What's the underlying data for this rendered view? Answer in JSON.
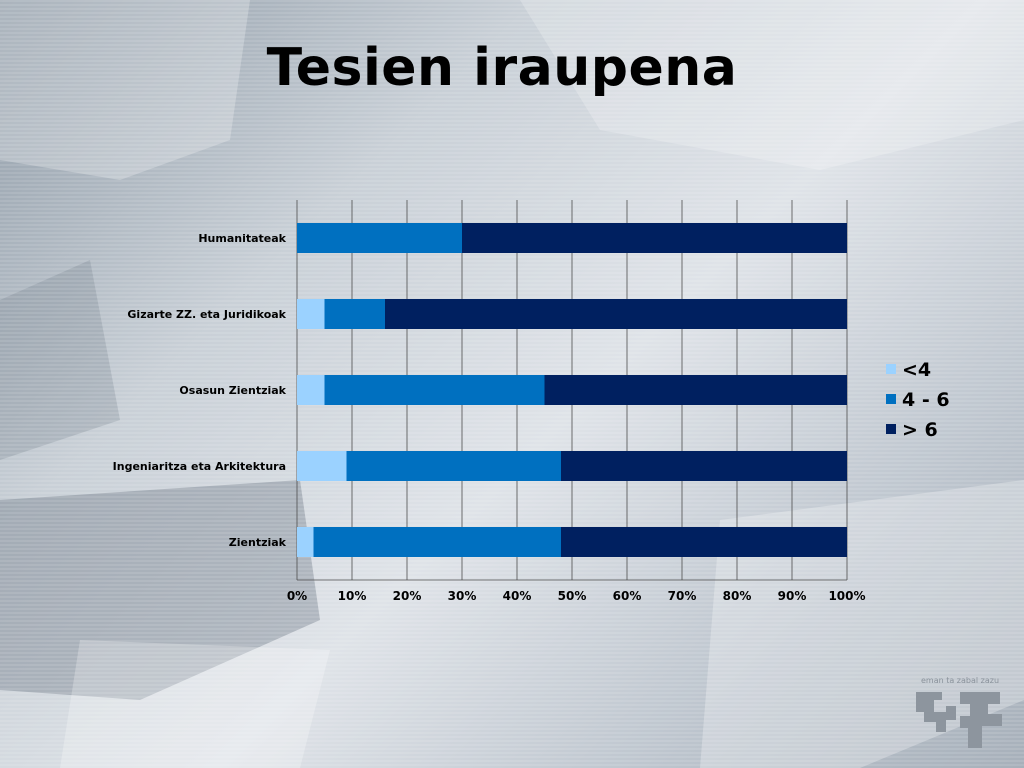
{
  "slide": {
    "title": "Tesien iraupena",
    "logo_motto": "eman ta zabal zazu"
  },
  "colors": {
    "lt4": "#9bd2ff",
    "mid": "#0070c0",
    "gt6": "#002060"
  },
  "chart_data": {
    "type": "bar",
    "orientation": "horizontal",
    "stacked": "percent",
    "categories": [
      "Humanitateak",
      "Gizarte ZZ. eta Juridikoak",
      "Osasun Zientziak",
      "Ingeniaritza eta Arkitektura",
      "Zientziak"
    ],
    "series": [
      {
        "name": "<4",
        "color": "#9bd2ff",
        "values": [
          0,
          5,
          5,
          9,
          3
        ]
      },
      {
        "name": "4 - 6",
        "color": "#0070c0",
        "values": [
          30,
          11,
          40,
          39,
          45
        ]
      },
      {
        "name": "> 6",
        "color": "#002060",
        "values": [
          70,
          84,
          55,
          52,
          52
        ]
      }
    ],
    "xticks": [
      "0%",
      "10%",
      "20%",
      "30%",
      "40%",
      "50%",
      "60%",
      "70%",
      "80%",
      "90%",
      "100%"
    ],
    "xlim": [
      0,
      100
    ],
    "grid": true,
    "legend": "right",
    "title": "",
    "xlabel": "",
    "ylabel": ""
  }
}
